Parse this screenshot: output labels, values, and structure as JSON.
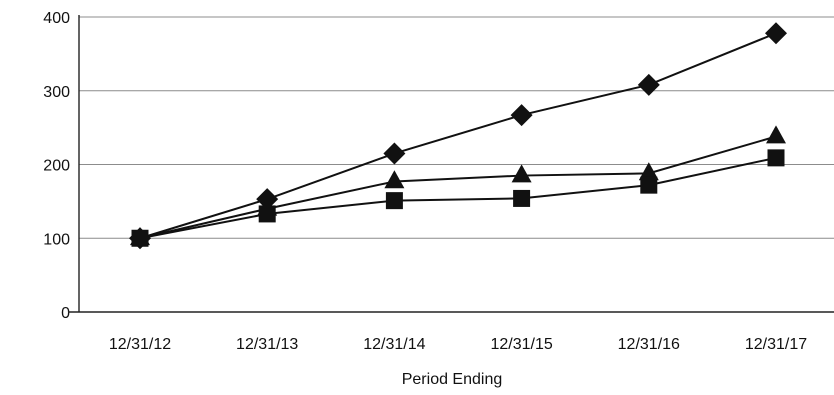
{
  "chart_data": {
    "type": "line",
    "categories": [
      "12/31/12",
      "12/31/13",
      "12/31/14",
      "12/31/15",
      "12/31/16",
      "12/31/17"
    ],
    "xlabel": "Period Ending",
    "ylabel": "",
    "title": "",
    "ylim": [
      0,
      400
    ],
    "yticks": [
      0,
      100,
      200,
      300,
      400
    ],
    "grid": true,
    "legend": "none",
    "series": [
      {
        "marker": "diamond",
        "color": "#111111",
        "values": [
          100,
          153,
          215,
          267,
          308,
          378
        ]
      },
      {
        "marker": "triangle",
        "color": "#111111",
        "values": [
          100,
          140,
          177,
          185,
          188,
          238
        ]
      },
      {
        "marker": "square",
        "color": "#111111",
        "values": [
          100,
          133,
          151,
          154,
          172,
          209
        ]
      }
    ]
  }
}
